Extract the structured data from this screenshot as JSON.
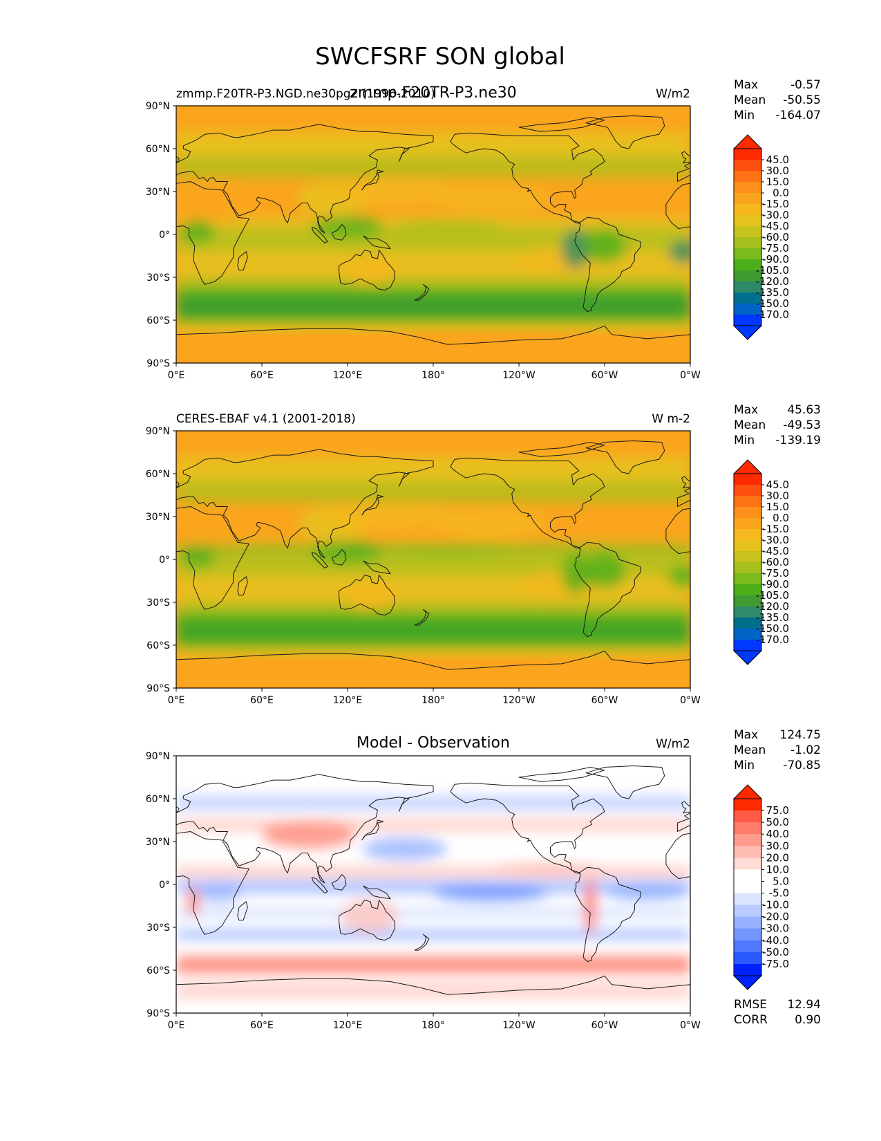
{
  "figure_title": "SWCFSRF SON global",
  "axes": {
    "lat_ticks": [
      "90°N",
      "60°N",
      "30°N",
      "0°",
      "30°S",
      "60°S",
      "90°S"
    ],
    "lon_ticks": [
      "0°E",
      "60°E",
      "120°E",
      "180°",
      "120°W",
      "60°W",
      "0°W"
    ]
  },
  "colors": {
    "model_ramp": [
      "#0038ff",
      "#0063c6",
      "#006f8c",
      "#2f8a6a",
      "#3f9a32",
      "#4caf1a",
      "#7bbb1e",
      "#a8c01e",
      "#c8c21e",
      "#e6c21e",
      "#f5b81e",
      "#fba51e",
      "#fd8f1a",
      "#fd7214",
      "#fd5010",
      "#ff2a00"
    ],
    "diff_ramp": [
      "#0022ff",
      "#2b5bff",
      "#4f78ff",
      "#7396ff",
      "#96b1ff",
      "#b9cbff",
      "#dbe5ff",
      "#ffffff",
      "#ffffff",
      "#ffdcd6",
      "#ffbcb2",
      "#ff9c8e",
      "#ff7b6a",
      "#ff5b46",
      "#ff2a00"
    ]
  },
  "chart_data": [
    {
      "type": "heatmap",
      "panel": "test",
      "title_left": "zmmp.F20TR-P3.NGD.ne30pg2 (1996-2010)",
      "title_center": "zmmp.F20TR-P3.ne30",
      "units": "W/m2",
      "stats": [
        {
          "label": "Max",
          "value": "-0.57"
        },
        {
          "label": "Mean",
          "value": "-50.55"
        },
        {
          "label": "Min",
          "value": "-164.07"
        }
      ],
      "colorbar_ticks": [
        "45.0",
        "30.0",
        "15.0",
        "0.0",
        "-15.0",
        "-30.0",
        "-45.0",
        "-60.0",
        "-75.0",
        "-90.0",
        "-105.0",
        "-120.0",
        "-135.0",
        "-150.0",
        "-170.0"
      ],
      "xlim": [
        0,
        360
      ],
      "ylim": [
        -90,
        90
      ]
    },
    {
      "type": "heatmap",
      "panel": "reference",
      "title_left": "CERES-EBAF v4.1 (2001-2018)",
      "title_center": "",
      "units": "W m-2",
      "stats": [
        {
          "label": "Max",
          "value": "45.63"
        },
        {
          "label": "Mean",
          "value": "-49.53"
        },
        {
          "label": "Min",
          "value": "-139.19"
        }
      ],
      "colorbar_ticks": [
        "45.0",
        "30.0",
        "15.0",
        "0.0",
        "-15.0",
        "-30.0",
        "-45.0",
        "-60.0",
        "-75.0",
        "-90.0",
        "-105.0",
        "-120.0",
        "-135.0",
        "-150.0",
        "-170.0"
      ],
      "xlim": [
        0,
        360
      ],
      "ylim": [
        -90,
        90
      ]
    },
    {
      "type": "heatmap",
      "panel": "difference",
      "title_left": "",
      "title_center": "Model - Observation",
      "units": "W/m2",
      "stats": [
        {
          "label": "Max",
          "value": "124.75"
        },
        {
          "label": "Mean",
          "value": "-1.02"
        },
        {
          "label": "Min",
          "value": "-70.85"
        }
      ],
      "extra_stats": [
        {
          "label": "RMSE",
          "value": "12.94"
        },
        {
          "label": "CORR",
          "value": "0.90"
        }
      ],
      "colorbar_ticks": [
        "75.0",
        "50.0",
        "40.0",
        "30.0",
        "20.0",
        "10.0",
        "5.0",
        "-5.0",
        "-10.0",
        "-20.0",
        "-30.0",
        "-40.0",
        "-50.0",
        "-75.0"
      ],
      "xlim": [
        0,
        360
      ],
      "ylim": [
        -90,
        90
      ]
    }
  ]
}
